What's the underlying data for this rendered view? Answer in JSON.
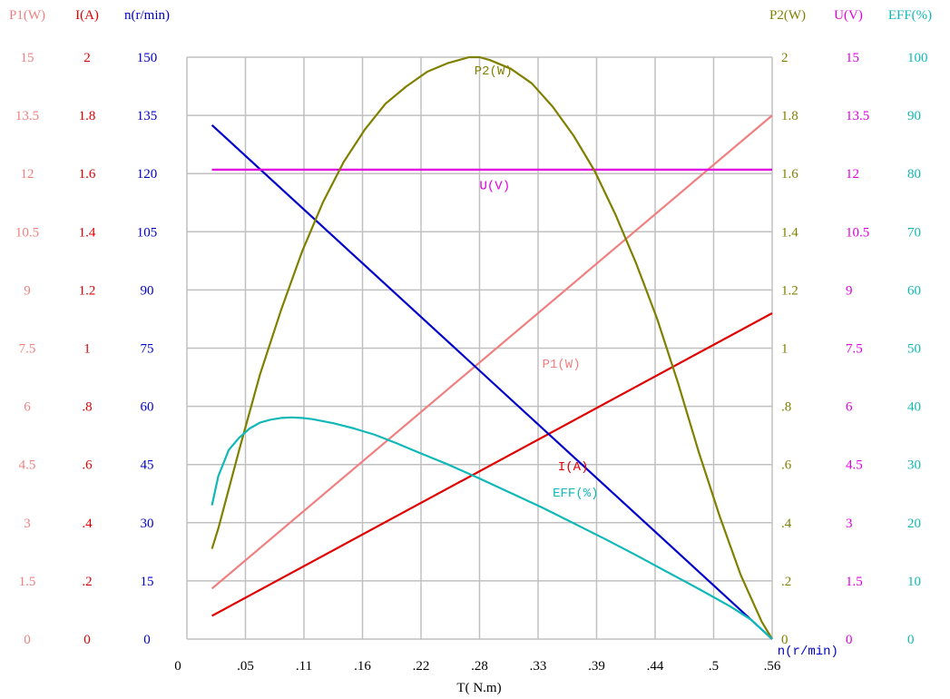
{
  "chart_data": {
    "type": "line",
    "xlabel": "T( N.m)",
    "x_ticks": [
      "0",
      ".05",
      ".11",
      ".16",
      ".22",
      ".28",
      ".33",
      ".39",
      ".44",
      ".5",
      ".56"
    ],
    "xlim": [
      0,
      0.56
    ],
    "grid": true,
    "left_axes": [
      {
        "id": "P1",
        "title": "P1(W)",
        "color": "#f08080",
        "ticks": [
          "0",
          "1.5",
          "3",
          "4.5",
          "6",
          "7.5",
          "9",
          "10.5",
          "12",
          "13.5",
          "15"
        ]
      },
      {
        "id": "I",
        "title": "I(A)",
        "color": "#e00000",
        "ticks": [
          "0",
          ".2",
          ".4",
          ".6",
          ".8",
          "1",
          "1.2",
          "1.4",
          "1.6",
          "1.8",
          "2"
        ]
      },
      {
        "id": "n",
        "title": "n(r/min)",
        "color": "#0000cc",
        "ticks": [
          "0",
          "15",
          "30",
          "45",
          "60",
          "75",
          "90",
          "105",
          "120",
          "135",
          "150"
        ]
      }
    ],
    "right_axes": [
      {
        "id": "P2",
        "title": "P2(W)",
        "color": "#808000",
        "ticks": [
          "0",
          ".2",
          ".4",
          ".6",
          ".8",
          "1",
          "1.2",
          "1.4",
          "1.6",
          "1.8",
          "2"
        ]
      },
      {
        "id": "U",
        "title": "U(V)",
        "color": "#e000e0",
        "ticks": [
          "0",
          "1.5",
          "3",
          "4.5",
          "6",
          "7.5",
          "9",
          "10.5",
          "12",
          "13.5",
          "15"
        ]
      },
      {
        "id": "EFF",
        "title": "EFF(%)",
        "color": "#10b8b8",
        "ticks": [
          "0",
          "10",
          "20",
          "30",
          "40",
          "50",
          "60",
          "70",
          "80",
          "90",
          "100"
        ]
      }
    ],
    "series": [
      {
        "name": "P1(W)",
        "axis": "P1",
        "color": "#f08080",
        "label_at": [
          0.34,
          7.0
        ],
        "x": [
          0.024,
          0.56
        ],
        "y": [
          1.3,
          13.5
        ]
      },
      {
        "name": "I(A)",
        "axis": "I",
        "color": "#e00000",
        "label_at": [
          0.355,
          0.58
        ],
        "x": [
          0.024,
          0.56
        ],
        "y": [
          0.08,
          1.12
        ]
      },
      {
        "name": "n(r/min)",
        "axis": "n",
        "color": "#0000cc",
        "label_at": [
          0.565,
          -4.0
        ],
        "x": [
          0.024,
          0.56
        ],
        "y": [
          132.5,
          0
        ]
      },
      {
        "name": "U(V)",
        "axis": "U",
        "color": "#e000e0",
        "label_at": [
          0.28,
          11.6
        ],
        "x": [
          0.024,
          0.56
        ],
        "y": [
          12.1,
          12.1
        ]
      },
      {
        "name": "P2(W)",
        "axis": "P2",
        "color": "#808000",
        "label_at": [
          0.275,
          1.94
        ],
        "x": [
          0.024,
          0.03,
          0.05,
          0.07,
          0.09,
          0.11,
          0.13,
          0.15,
          0.17,
          0.19,
          0.21,
          0.23,
          0.25,
          0.27,
          0.28,
          0.29,
          0.31,
          0.33,
          0.35,
          0.37,
          0.39,
          0.41,
          0.43,
          0.45,
          0.47,
          0.49,
          0.51,
          0.53,
          0.55,
          0.56
        ],
        "y": [
          0.31,
          0.38,
          0.65,
          0.91,
          1.13,
          1.33,
          1.5,
          1.64,
          1.75,
          1.84,
          1.9,
          1.95,
          1.98,
          2.0,
          2.0,
          1.99,
          1.96,
          1.91,
          1.83,
          1.73,
          1.61,
          1.46,
          1.29,
          1.1,
          0.88,
          0.64,
          0.42,
          0.22,
          0.06,
          0.0
        ]
      },
      {
        "name": "EFF(%)",
        "axis": "EFF",
        "color": "#10b8b8",
        "label_at": [
          0.35,
          24.5
        ],
        "x": [
          0.024,
          0.03,
          0.04,
          0.05,
          0.06,
          0.07,
          0.08,
          0.09,
          0.1,
          0.11,
          0.12,
          0.14,
          0.16,
          0.18,
          0.2,
          0.22,
          0.25,
          0.28,
          0.31,
          0.34,
          0.37,
          0.4,
          0.43,
          0.46,
          0.49,
          0.52,
          0.54,
          0.56
        ],
        "y": [
          23.0,
          28.0,
          32.5,
          34.6,
          36.2,
          37.2,
          37.7,
          38.0,
          38.1,
          38.0,
          37.8,
          37.1,
          36.2,
          35.1,
          33.7,
          32.2,
          30.0,
          27.6,
          25.1,
          22.6,
          19.9,
          17.2,
          14.4,
          11.5,
          8.6,
          5.6,
          3.3,
          0.0
        ]
      }
    ]
  }
}
